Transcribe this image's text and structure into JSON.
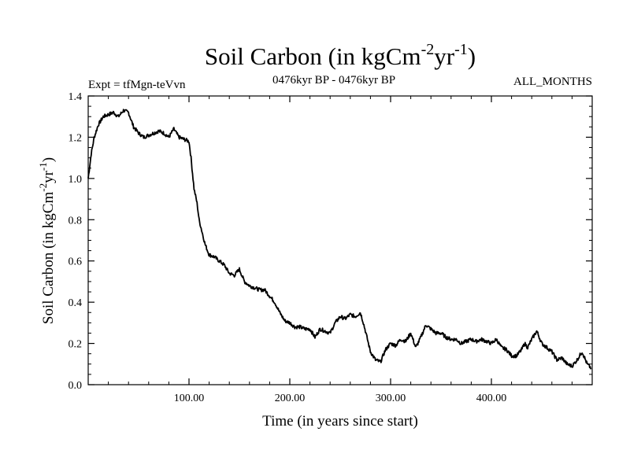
{
  "chart_data": {
    "type": "line",
    "title": "Soil Carbon (in kgCm",
    "title_exp1": "-2",
    "title_mid": "yr",
    "title_exp2": "-1",
    "title_end": ")",
    "subtitle_left": "Expt = tfMgn-teVvn",
    "subtitle_center": "0476kyr BP - 0476kyr BP",
    "subtitle_right": "ALL_MONTHS",
    "xlabel": "Time (in years since start)",
    "ylabel": "Soil Carbon (in kgCm",
    "ylabel_exp1": "-2",
    "ylabel_mid": "yr",
    "ylabel_exp2": "-1",
    "ylabel_end": ")",
    "xlim": [
      0,
      500
    ],
    "ylim": [
      0.0,
      1.4
    ],
    "x_ticks": [
      100,
      200,
      300,
      400
    ],
    "x_tick_labels": [
      "100.00",
      "200.00",
      "300.00",
      "400.00"
    ],
    "y_ticks": [
      0.0,
      0.2,
      0.4,
      0.6,
      0.8,
      1.0,
      1.2,
      1.4
    ],
    "y_tick_labels": [
      "0.0",
      "0.2",
      "0.4",
      "0.6",
      "0.8",
      "1.0",
      "1.2",
      "1.4"
    ],
    "series": [
      {
        "name": "Soil Carbon",
        "color": "#000000",
        "x": [
          0,
          3,
          6,
          10,
          15,
          20,
          25,
          30,
          35,
          40,
          45,
          50,
          55,
          60,
          65,
          70,
          75,
          80,
          85,
          90,
          95,
          100,
          102,
          105,
          108,
          110,
          113,
          116,
          120,
          125,
          130,
          135,
          140,
          145,
          150,
          155,
          160,
          165,
          170,
          175,
          180,
          185,
          190,
          195,
          200,
          205,
          210,
          215,
          220,
          225,
          230,
          235,
          240,
          245,
          250,
          255,
          260,
          265,
          270,
          273,
          276,
          280,
          285,
          290,
          295,
          300,
          305,
          310,
          315,
          320,
          325,
          330,
          335,
          340,
          345,
          350,
          355,
          360,
          365,
          370,
          375,
          380,
          385,
          390,
          395,
          400,
          405,
          410,
          415,
          420,
          425,
          430,
          433,
          436,
          440,
          445,
          450,
          455,
          460,
          465,
          470,
          475,
          480,
          485,
          490,
          495,
          499
        ],
        "values": [
          1.0,
          1.12,
          1.2,
          1.26,
          1.3,
          1.31,
          1.32,
          1.3,
          1.33,
          1.32,
          1.25,
          1.22,
          1.2,
          1.21,
          1.22,
          1.23,
          1.22,
          1.2,
          1.24,
          1.2,
          1.19,
          1.18,
          1.1,
          0.95,
          0.88,
          0.8,
          0.74,
          0.68,
          0.63,
          0.62,
          0.6,
          0.58,
          0.54,
          0.53,
          0.56,
          0.5,
          0.48,
          0.47,
          0.46,
          0.46,
          0.43,
          0.4,
          0.35,
          0.31,
          0.3,
          0.28,
          0.28,
          0.27,
          0.27,
          0.23,
          0.27,
          0.26,
          0.25,
          0.3,
          0.33,
          0.32,
          0.34,
          0.33,
          0.35,
          0.3,
          0.24,
          0.16,
          0.12,
          0.11,
          0.17,
          0.2,
          0.19,
          0.22,
          0.21,
          0.25,
          0.18,
          0.23,
          0.29,
          0.27,
          0.25,
          0.25,
          0.23,
          0.22,
          0.22,
          0.2,
          0.21,
          0.22,
          0.21,
          0.22,
          0.21,
          0.2,
          0.22,
          0.18,
          0.17,
          0.14,
          0.14,
          0.17,
          0.2,
          0.18,
          0.22,
          0.26,
          0.2,
          0.18,
          0.16,
          0.12,
          0.13,
          0.1,
          0.09,
          0.12,
          0.16,
          0.1,
          0.08
        ]
      }
    ]
  }
}
